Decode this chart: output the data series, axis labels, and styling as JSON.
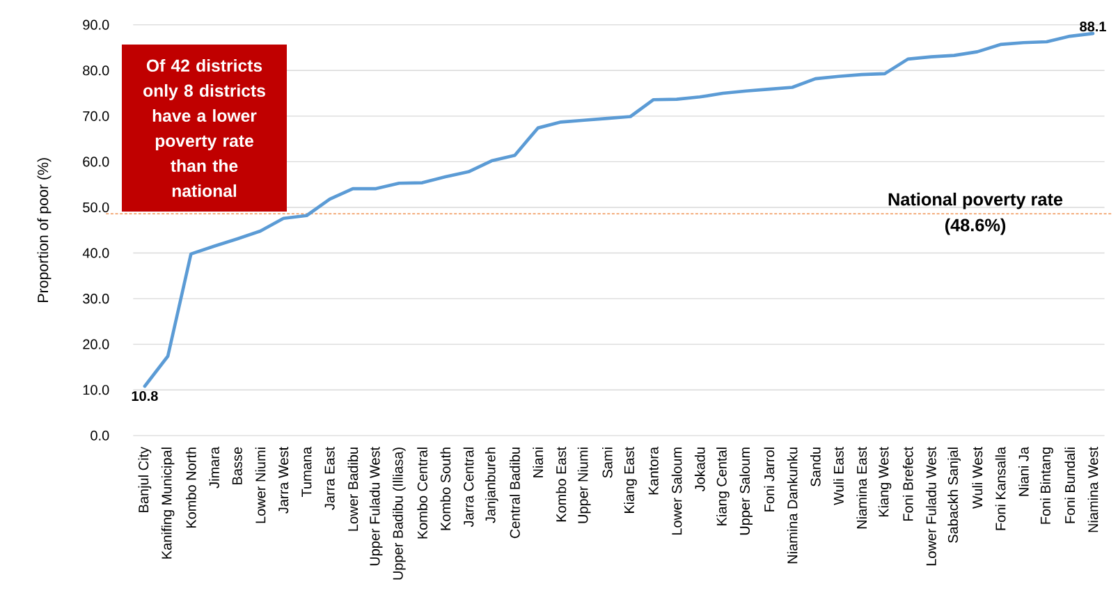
{
  "chart_data": {
    "type": "line",
    "ylabel": "Proportion of poor (%)",
    "annotations": [
      "Of 42 districts only 8 districts have a lower poverty rate than the national"
    ],
    "categories": [
      "Banjul City",
      "Kanifing Municipal",
      "Kombo North",
      "Jimara",
      "Basse",
      "Lower Niumi",
      "Jarra West",
      "Tumana",
      "Jarra East",
      "Lower Badibu",
      "Upper Fuladu West",
      "Upper Badibu (Illiasa)",
      "Kombo Central",
      "Kombo South",
      "Jarra Central",
      "Janjanbureh",
      "Central Badibu",
      "Niani",
      "Kombo East",
      "Upper Niumi",
      "Sami",
      "Kiang East",
      "Kantora",
      "Lower Saloum",
      "Jokadu",
      "Kiang Cental",
      "Upper Saloum",
      "Foni Jarrol",
      "Niamina Dankunku",
      "Sandu",
      "Wuli East",
      "Niamina East",
      "Kiang West",
      "Foni Brefect",
      "Lower Fuladu West",
      "Sabackh Sanjal",
      "Wuli West",
      "Foni Kansalla",
      "Niani Ja",
      "Foni Bintang",
      "Foni Bundali",
      "Niamina West"
    ],
    "values": [
      10.8,
      17.4,
      39.8,
      41.5,
      43.1,
      44.8,
      47.6,
      48.2,
      51.8,
      54.1,
      54.1,
      55.3,
      55.4,
      56.7,
      57.8,
      60.2,
      61.4,
      67.4,
      68.7,
      69.1,
      69.5,
      69.9,
      73.6,
      73.7,
      74.2,
      75.0,
      75.5,
      75.9,
      76.3,
      78.2,
      78.7,
      79.1,
      79.3,
      82.5,
      83.0,
      83.3,
      84.1,
      85.7,
      86.1,
      86.3,
      87.5,
      88.1
    ],
    "value_labels": [
      "10.8",
      null,
      null,
      null,
      null,
      null,
      null,
      null,
      null,
      null,
      null,
      null,
      null,
      null,
      null,
      null,
      null,
      null,
      null,
      null,
      null,
      null,
      null,
      null,
      null,
      null,
      null,
      null,
      null,
      null,
      null,
      null,
      null,
      null,
      null,
      null,
      null,
      null,
      null,
      null,
      null,
      "88.1"
    ],
    "color": "#5b9bd5",
    "ylim": [
      0,
      90
    ],
    "yticks": [
      {
        "value": 0,
        "label": "0.0"
      },
      {
        "value": 10,
        "label": "10.0"
      },
      {
        "value": 20,
        "label": "20.0"
      },
      {
        "value": 30,
        "label": "30.0"
      },
      {
        "value": 40,
        "label": "40.0"
      },
      {
        "value": 50,
        "label": "50.0"
      },
      {
        "value": 60,
        "label": "60.0"
      },
      {
        "value": 70,
        "label": "70.0"
      },
      {
        "value": 80,
        "label": "80.0"
      },
      {
        "value": 90,
        "label": "90.0"
      }
    ],
    "grid": "y",
    "marker": "none",
    "line_style": "solid",
    "ref_lines": [
      {
        "axis": "y",
        "value": 48.6,
        "label": "National poverty rate (48.6%)",
        "color": "#ed7d31",
        "line_style": "dashed"
      }
    ]
  }
}
